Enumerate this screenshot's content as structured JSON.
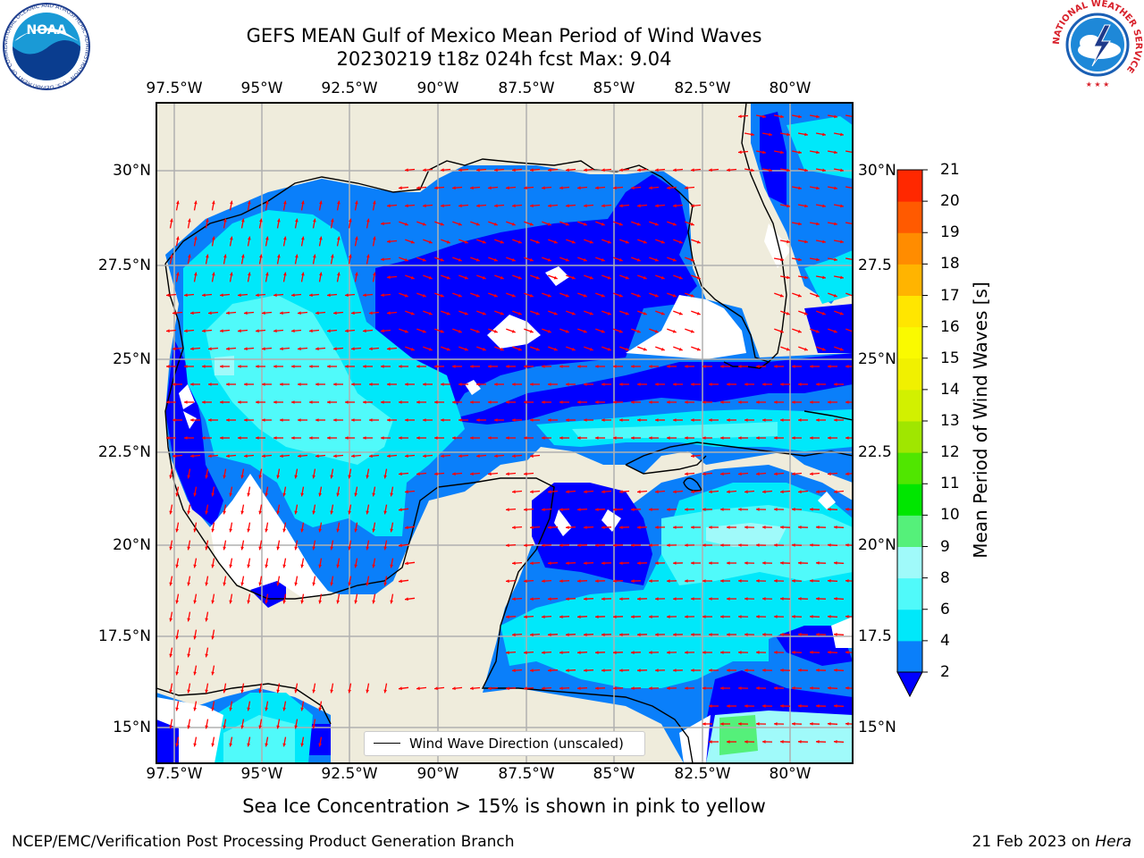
{
  "title": {
    "line1": "GEFS MEAN Gulf of Mexico Mean Period of Wind Waves",
    "line2": "20230219 t18z 024h fcst   Max: 9.04"
  },
  "axes": {
    "lon_ticks": [
      {
        "value": -97.5,
        "label": "97.5°W"
      },
      {
        "value": -95,
        "label": "95°W"
      },
      {
        "value": -92.5,
        "label": "92.5°W"
      },
      {
        "value": -90,
        "label": "90°W"
      },
      {
        "value": -87.5,
        "label": "87.5°W"
      },
      {
        "value": -85,
        "label": "85°W"
      },
      {
        "value": -82.5,
        "label": "82.5°W"
      },
      {
        "value": -80,
        "label": "80°W"
      }
    ],
    "lat_ticks_left": [
      {
        "value": 30,
        "label": "30°N"
      },
      {
        "value": 27.5,
        "label": "27.5°N"
      },
      {
        "value": 25,
        "label": "25°N"
      },
      {
        "value": 22.5,
        "label": "22.5°N"
      },
      {
        "value": 20,
        "label": "20°N"
      },
      {
        "value": 17.5,
        "label": "17.5°N"
      },
      {
        "value": 15,
        "label": "15°N"
      }
    ],
    "lat_ticks_right": [
      {
        "value": 30,
        "label": "30°N"
      },
      {
        "value": 27.5,
        "label": "27.5"
      },
      {
        "value": 25,
        "label": "25°N"
      },
      {
        "value": 22.5,
        "label": "22.5"
      },
      {
        "value": 20,
        "label": "20°N"
      },
      {
        "value": 17.5,
        "label": "17.5"
      },
      {
        "value": 15,
        "label": "15°N"
      }
    ]
  },
  "colorbar": {
    "label": "Mean Period of Wind Waves [s]",
    "ticks": [
      "2",
      "4",
      "6",
      "8",
      "9",
      "10",
      "11",
      "12",
      "13",
      "14",
      "15",
      "16",
      "17",
      "18",
      "19",
      "20",
      "21"
    ],
    "colors": [
      "#0a7ffa",
      "#00e8fa",
      "#50fafa",
      "#a0fafa",
      "#55f07a",
      "#00e600",
      "#50e600",
      "#a0e600",
      "#d2f000",
      "#f0f000",
      "#fafa00",
      "#ffe600",
      "#ffb400",
      "#ff8c00",
      "#ff5a00",
      "#ff2800"
    ],
    "below_color": "#0000ff"
  },
  "legend": {
    "label": "Wind Wave Direction (unscaled)"
  },
  "footer": {
    "caption": "Sea Ice Concentration > 15% is shown in pink to yellow",
    "credit": "NCEP/EMC/Verification Post Processing Product Generation Branch",
    "date": "21 Feb 2023 on ",
    "host": "Hera"
  },
  "logos": {
    "noaa": "NOAA",
    "noaa_ring": "NATIONAL OCEANIC AND ATMOSPHERIC ADMINISTRATION · U.S. DEPARTMENT OF COMMERCE",
    "nws_ring": "NATIONAL WEATHER SERVICE"
  },
  "colors": {
    "land": "#efecdc",
    "band_2_4": "#0a7ffa",
    "band_4_6": "#00e8fa",
    "band_6_8": "#50fafa",
    "band_8_9": "#a0fafa",
    "band_9_10": "#55f07a",
    "below_2": "#0000ff",
    "arrow": "#ff0000",
    "grid": "#b0b0b0"
  }
}
